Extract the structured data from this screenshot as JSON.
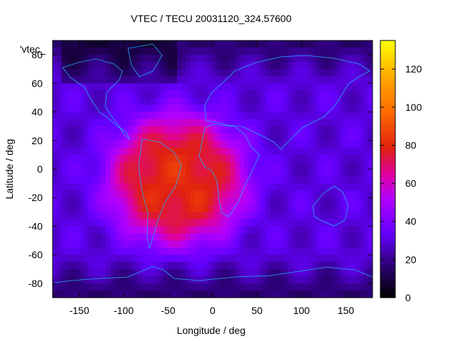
{
  "chart_data": {
    "type": "heatmap",
    "title": "VTEC / TECU 20031120_324.57600",
    "xlabel": "Longitude / deg",
    "ylabel": "Latitude / deg",
    "key_label": "'vtec_",
    "xlim": [
      -180,
      180
    ],
    "ylim": [
      -90,
      90
    ],
    "x_ticks": [
      -150,
      -100,
      -50,
      0,
      50,
      100,
      150
    ],
    "y_ticks": [
      -80,
      -60,
      -40,
      -20,
      0,
      20,
      40,
      60,
      80
    ],
    "colorbar": {
      "range": [
        0,
        135
      ],
      "ticks": [
        0,
        20,
        40,
        60,
        80,
        100,
        120
      ],
      "palette": [
        "#000000",
        "#3a0090",
        "#6b00ff",
        "#b000ff",
        "#d8003c",
        "#ff5500",
        "#ff9900",
        "#ffff00"
      ]
    },
    "grid": false,
    "features": {
      "peak_region": {
        "lon_range": [
          -130,
          50
        ],
        "lat_range": [
          -60,
          45
        ],
        "max_value": 80
      },
      "background_value": 30,
      "overlay": "coastlines"
    }
  }
}
